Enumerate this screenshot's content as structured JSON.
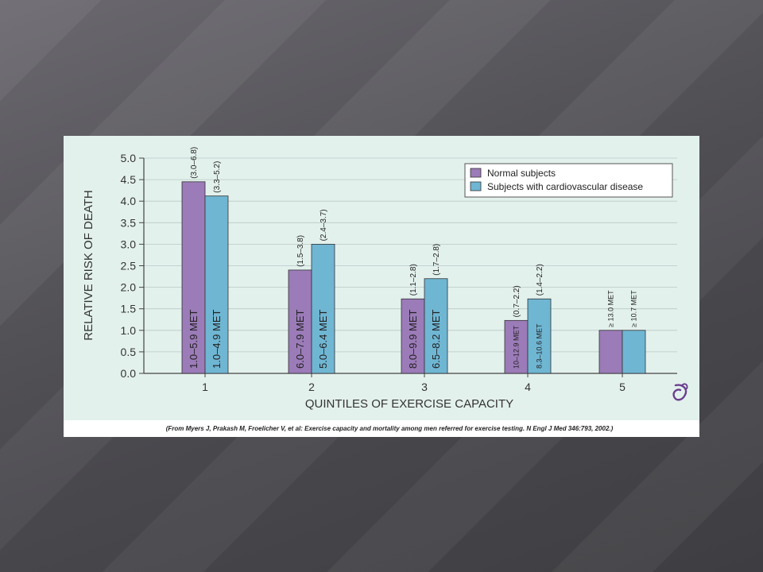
{
  "chart_data": {
    "type": "bar",
    "categories": [
      "1",
      "2",
      "3",
      "4",
      "5"
    ],
    "xlabel": "QUINTILES OF EXERCISE CAPACITY",
    "ylabel": "RELATIVE RISK OF DEATH",
    "ylim": [
      0,
      5.0
    ],
    "yticks": [
      "0.0",
      "0.5",
      "1.0",
      "1.5",
      "2.0",
      "2.5",
      "3.0",
      "3.5",
      "4.0",
      "4.5",
      "5.0"
    ],
    "grid": true,
    "legend_position": "top-right",
    "series": [
      {
        "name": "Normal subjects",
        "color": "#9b7bb8",
        "values": [
          4.45,
          2.4,
          1.73,
          1.23,
          1.0
        ],
        "ci_labels": [
          "(3.0–6.8)",
          "(1.5–3.8)",
          "(1.1–2.8)",
          "(0.7–2.2)",
          ""
        ],
        "met_labels": [
          "1.0–5.9 MET",
          "6.0–7.9 MET",
          "8.0–9.9 MET",
          "10–12.9 MET",
          "≥ 13.0 MET"
        ]
      },
      {
        "name": "Subjects with cardiovascular disease",
        "color": "#6fb6d3",
        "values": [
          4.12,
          3.0,
          2.2,
          1.73,
          1.0
        ],
        "ci_labels": [
          "(3.3–5.2)",
          "(2.4–3.7)",
          "(1.7–2.8)",
          "(1.4–2.2)",
          ""
        ],
        "met_labels": [
          "1.0–4.9 MET",
          "5.0–6.4 MET",
          "6.5–8.2 MET",
          "8.3–10.6 MET",
          "≥ 10.7 MET"
        ]
      }
    ]
  },
  "caption": "(From Myers J, Prakash M, Froelicher V, et al: Exercise capacity and mortality among men referred for exercise testing. N Engl J Med 346:793, 2002.)",
  "logo_icon": "publisher-logo-icon"
}
